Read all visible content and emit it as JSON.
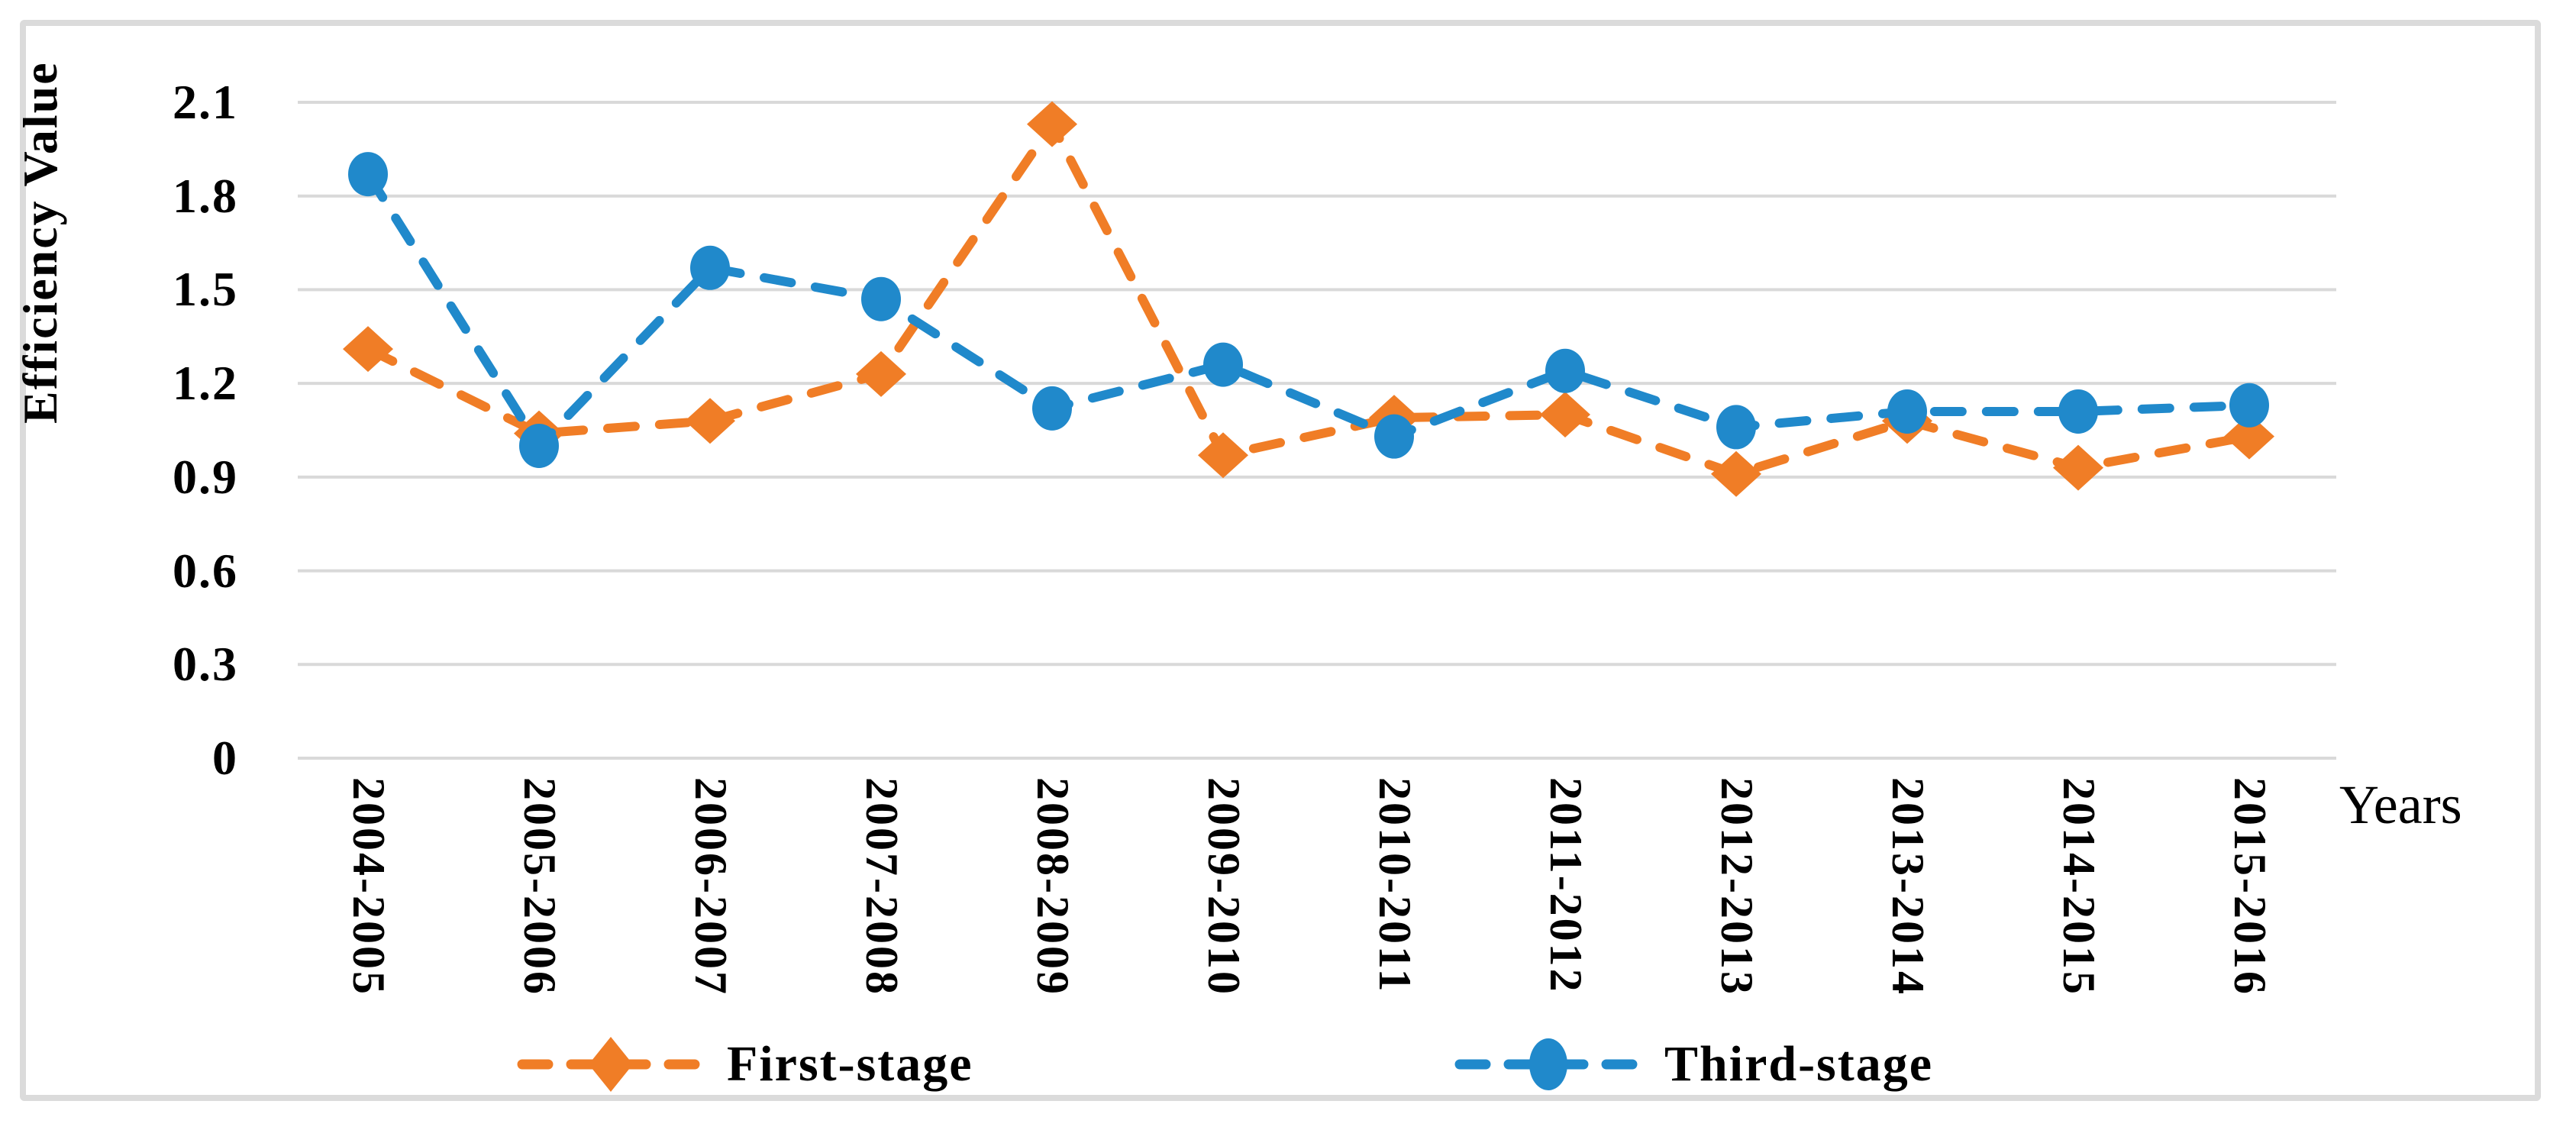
{
  "chart_data": {
    "type": "line",
    "title": "",
    "ylabel": "Efficiency Value",
    "xlabel": "Years",
    "categories": [
      "2004-2005",
      "2005-2006",
      "2006-2007",
      "2007-2008",
      "2008-2009",
      "2009-2010",
      "2010-2011",
      "2011-2012",
      "2012-2013",
      "2013-2014",
      "2014-2015",
      "2015-2016"
    ],
    "series": [
      {
        "name": "First-stage",
        "color": "#F07D26",
        "marker": "diamond",
        "line_style": "dashed",
        "values": [
          1.31,
          1.04,
          1.08,
          1.23,
          2.03,
          0.97,
          1.09,
          1.1,
          0.91,
          1.08,
          0.93,
          1.03
        ]
      },
      {
        "name": "Third-stage",
        "color": "#2089CB",
        "marker": "circle",
        "line_style": "dashed",
        "values": [
          1.87,
          1.0,
          1.57,
          1.47,
          1.12,
          1.26,
          1.03,
          1.24,
          1.06,
          1.11,
          1.11,
          1.13
        ]
      }
    ],
    "ylim": [
      0,
      2.1
    ],
    "ytick_step": 0.3,
    "yticks": [
      "0",
      "0.3",
      "0.6",
      "0.9",
      "1.2",
      "1.5",
      "1.8",
      "2.1"
    ],
    "grid": "horizontal",
    "gridline_color": "#D9D9D9",
    "frame_color": "#DBDBDB",
    "legend_position": "bottom",
    "x_label_rotation": "vertical"
  }
}
